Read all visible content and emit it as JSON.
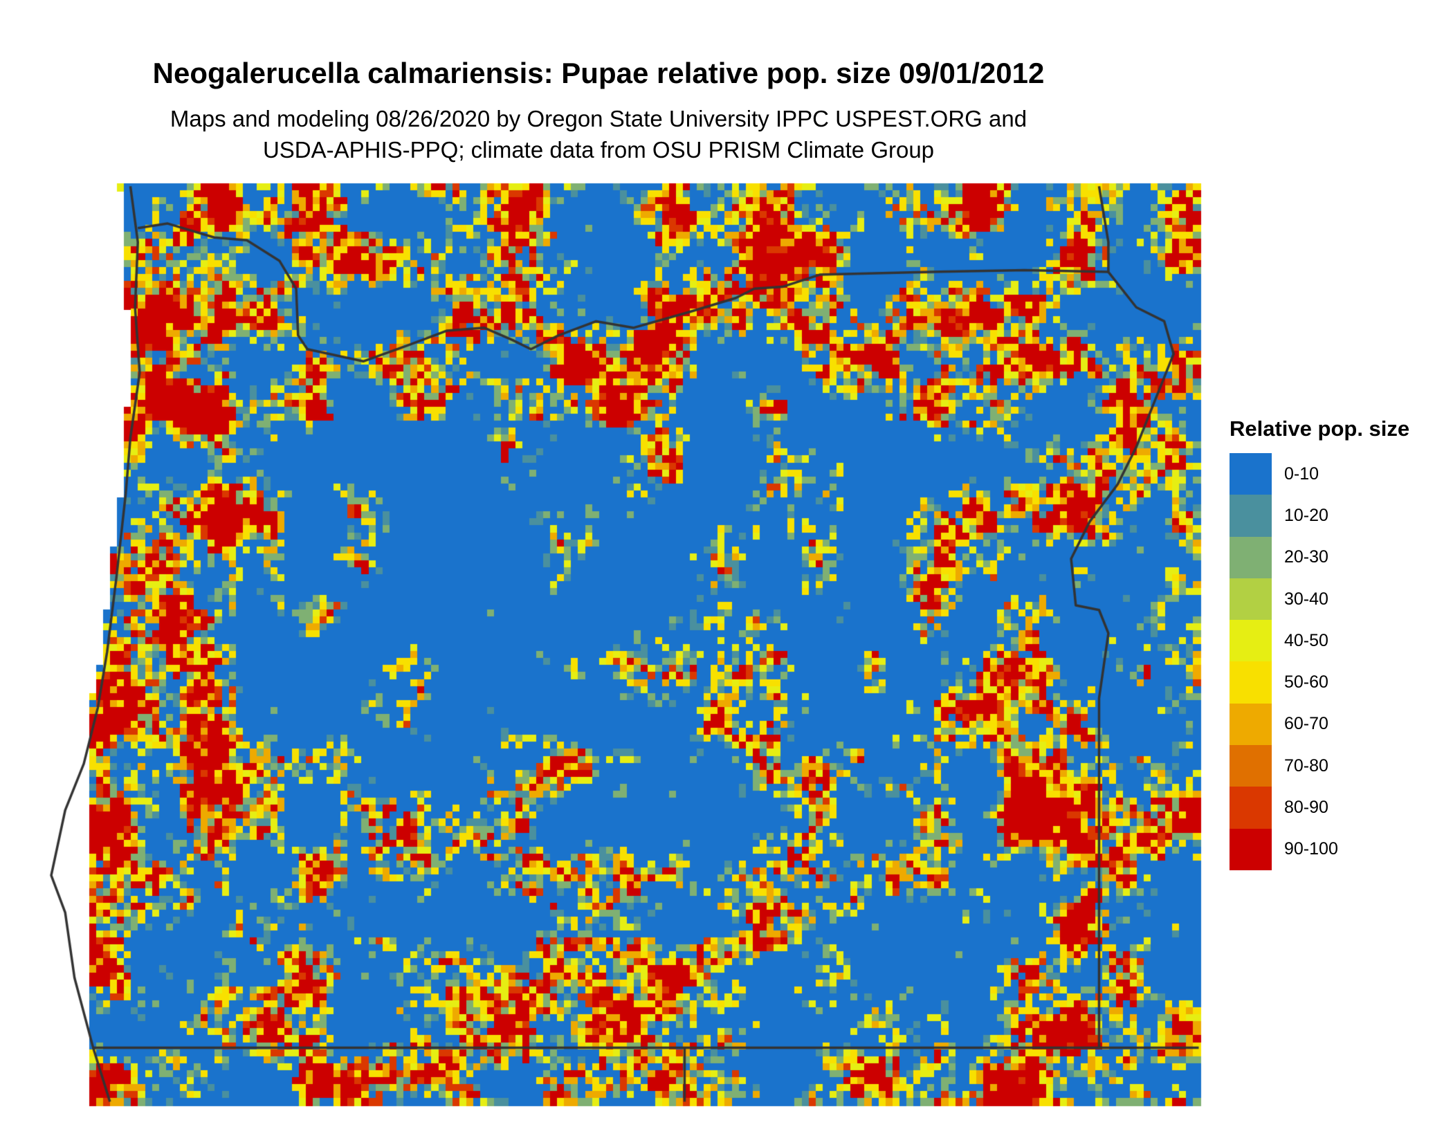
{
  "title": "Neogalerucella calmariensis: Pupae relative pop. size 09/01/2012",
  "subtitle_lines": [
    "Maps and modeling 08/26/2020 by Oregon State University IPPC USPEST.ORG and",
    "USDA-APHIS-PPQ; climate data from OSU PRISM Climate Group"
  ],
  "legend": {
    "title": "Relative pop. size",
    "items": [
      {
        "label": "0-10",
        "color": "#1a73cc"
      },
      {
        "label": "10-20",
        "color": "#4a909e"
      },
      {
        "label": "20-30",
        "color": "#7fb073"
      },
      {
        "label": "30-40",
        "color": "#b2d043"
      },
      {
        "label": "40-50",
        "color": "#e6ee13"
      },
      {
        "label": "50-60",
        "color": "#f8e000"
      },
      {
        "label": "60-70",
        "color": "#eeaa00"
      },
      {
        "label": "70-80",
        "color": "#e07000"
      },
      {
        "label": "80-90",
        "color": "#da3800"
      },
      {
        "label": "90-100",
        "color": "#cc0000"
      }
    ]
  },
  "map": {
    "boundary_color": "#333333"
  }
}
